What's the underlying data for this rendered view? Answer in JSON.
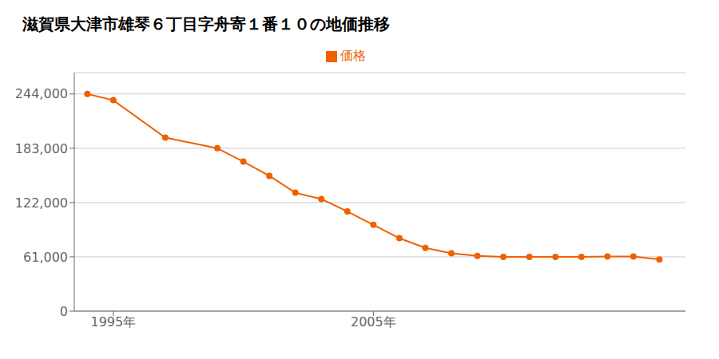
{
  "chart_data": {
    "type": "line",
    "title": "滋賀県大津市雄琴６丁目字舟寄１番１０の地価推移",
    "x": [
      1994,
      1995,
      1997,
      1999,
      2000,
      2001,
      2002,
      2003,
      2004,
      2005,
      2006,
      2007,
      2008,
      2009,
      2010,
      2011,
      2012,
      2013,
      2014,
      2015,
      2016
    ],
    "series": [
      {
        "name": "価格",
        "color": "#F06000",
        "marker": "circle",
        "values": [
          244000,
          237000,
          195000,
          183000,
          168000,
          152000,
          133000,
          126000,
          112000,
          97000,
          82000,
          71000,
          65000,
          62000,
          61000,
          61000,
          61000,
          61000,
          61500,
          61500,
          58000
        ]
      }
    ],
    "xlim": [
      1993.5,
      2017
    ],
    "xticks": [
      {
        "value": 1995,
        "label": "1995年"
      },
      {
        "value": 2005,
        "label": "2005年"
      }
    ],
    "ylim": [
      0,
      268000
    ],
    "yticks": [
      0,
      {
        "value": 61000,
        "label": "61,000"
      },
      {
        "value": 122000,
        "label": "122,000"
      },
      {
        "value": 183000,
        "label": "183,000"
      },
      {
        "value": 244000,
        "label": "244,000"
      }
    ],
    "grid": "y",
    "legend": "top"
  }
}
